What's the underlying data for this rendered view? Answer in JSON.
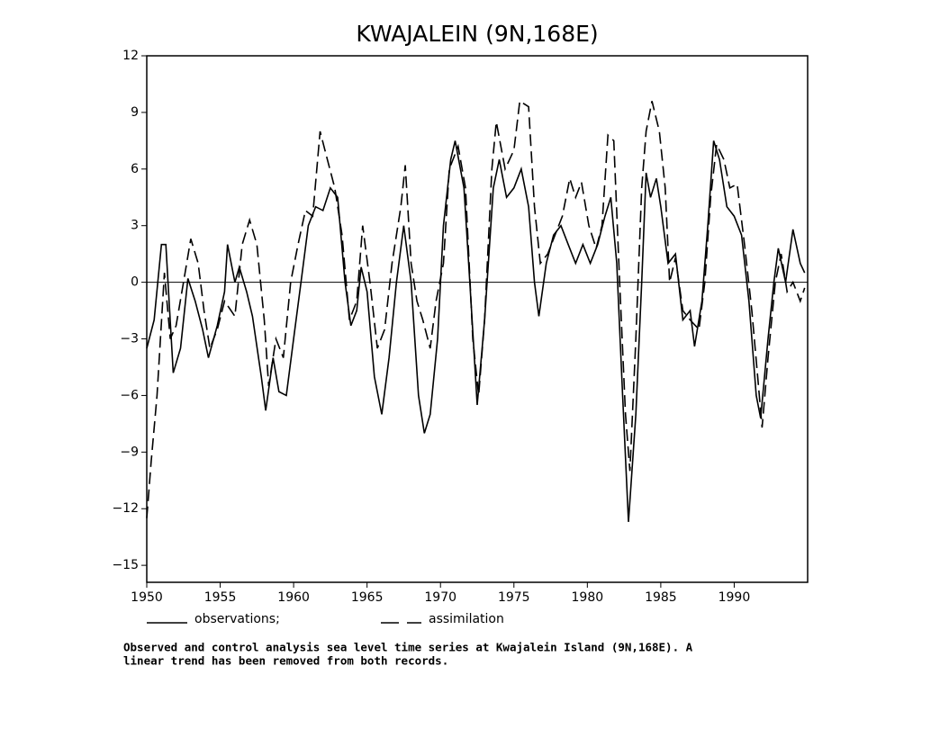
{
  "chart_data": {
    "type": "line",
    "title": "KWAJALEIN (9N,168E)",
    "xlim": [
      1950,
      1995
    ],
    "xticks": [
      1950,
      1955,
      1960,
      1965,
      1970,
      1975,
      1980,
      1985,
      1990
    ],
    "ylim": [
      -15.9,
      12
    ],
    "yticks": [
      {
        "value": -15,
        "label": "−15"
      },
      {
        "value": -12,
        "label": "−12"
      },
      {
        "value": -9,
        "label": "−9"
      },
      {
        "value": -6,
        "label": "−6"
      },
      {
        "value": -3,
        "label": "−3"
      },
      0,
      3,
      6,
      9,
      12
    ],
    "reference_line": 0,
    "series": [
      {
        "name": "observations;",
        "color": "#000000",
        "linestyle": "solid",
        "x": [
          1950.0,
          1950.5,
          1951.0,
          1951.3,
          1951.8,
          1952.3,
          1952.8,
          1953.3,
          1953.8,
          1954.2,
          1954.8,
          1955.3,
          1955.5,
          1956.0,
          1956.3,
          1956.8,
          1957.2,
          1957.8,
          1958.1,
          1958.6,
          1959.0,
          1959.5,
          1960.0,
          1960.5,
          1961.0,
          1961.5,
          1962.0,
          1962.5,
          1963.0,
          1963.5,
          1963.9,
          1964.3,
          1964.6,
          1965.0,
          1965.5,
          1966.0,
          1966.5,
          1967.0,
          1967.5,
          1968.0,
          1968.5,
          1968.9,
          1969.3,
          1969.8,
          1970.2,
          1970.7,
          1971.0,
          1971.6,
          1972.0,
          1972.5,
          1973.0,
          1973.6,
          1974.0,
          1974.5,
          1975.0,
          1975.5,
          1976.0,
          1976.4,
          1976.7,
          1977.2,
          1977.7,
          1978.2,
          1978.7,
          1979.2,
          1979.7,
          1980.2,
          1980.7,
          1981.2,
          1981.6,
          1982.0,
          1982.4,
          1982.8,
          1983.3,
          1983.7,
          1984.0,
          1984.3,
          1984.7,
          1985.0,
          1985.5,
          1986.0,
          1986.5,
          1987.0,
          1987.3,
          1987.8,
          1988.2,
          1988.6,
          1989.0,
          1989.5,
          1990.0,
          1990.5,
          1991.0,
          1991.5,
          1991.8,
          1992.3,
          1992.7,
          1993.0,
          1993.5,
          1994.0,
          1994.5,
          1994.8
        ],
        "values": [
          -3.5,
          -2,
          2,
          2,
          -4.8,
          -3.5,
          0.2,
          -1,
          -2.5,
          -4,
          -2.3,
          -0.5,
          2,
          0,
          0.8,
          -0.5,
          -1.8,
          -5,
          -6.8,
          -4,
          -5.8,
          -6,
          -3,
          0,
          3,
          4,
          3.8,
          5,
          4.5,
          0,
          -2.3,
          -1.5,
          0.8,
          -0.5,
          -5,
          -7,
          -4,
          0,
          3,
          0,
          -6,
          -8,
          -7,
          -3,
          3,
          6.5,
          7.5,
          5,
          0,
          -6.5,
          -2,
          5,
          6.5,
          4.5,
          5,
          6,
          4,
          0,
          -1.8,
          1,
          2.5,
          3,
          2,
          1,
          2,
          1,
          2,
          3.5,
          4.5,
          1,
          -6,
          -12.7,
          -7,
          0,
          5.8,
          4.5,
          5.5,
          4,
          1,
          1.5,
          -2,
          -1.5,
          -3.4,
          -1,
          3,
          7.5,
          6.5,
          4,
          3.5,
          2.5,
          -1,
          -6,
          -7.2,
          -3,
          0,
          1.8,
          0,
          2.8,
          1,
          0.5
        ]
      },
      {
        "name": "assimilation",
        "color": "#000000",
        "linestyle": "dashed",
        "x": [
          1950.0,
          1950.3,
          1950.7,
          1951.2,
          1951.6,
          1952.0,
          1952.5,
          1953.0,
          1953.5,
          1953.9,
          1954.3,
          1954.8,
          1955.3,
          1956.0,
          1956.5,
          1957.0,
          1957.5,
          1958.0,
          1958.3,
          1958.8,
          1959.3,
          1959.8,
          1960.3,
          1960.8,
          1961.3,
          1961.8,
          1962.3,
          1962.8,
          1963.3,
          1963.8,
          1964.3,
          1964.7,
          1965.2,
          1965.7,
          1966.2,
          1966.7,
          1967.3,
          1967.6,
          1968.0,
          1968.4,
          1968.8,
          1969.3,
          1969.7,
          1970.2,
          1970.6,
          1971.2,
          1971.7,
          1972.2,
          1972.6,
          1973.0,
          1973.5,
          1973.8,
          1974.4,
          1975.0,
          1975.4,
          1976.0,
          1976.4,
          1976.8,
          1977.3,
          1977.8,
          1978.3,
          1978.8,
          1979.2,
          1979.6,
          1980.1,
          1980.6,
          1981.0,
          1981.4,
          1981.8,
          1982.2,
          1982.6,
          1982.9,
          1983.3,
          1983.7,
          1984.0,
          1984.4,
          1984.9,
          1985.3,
          1985.6,
          1986.0,
          1986.5,
          1987.0,
          1987.6,
          1988.0,
          1988.4,
          1988.8,
          1989.3,
          1989.7,
          1990.2,
          1990.7,
          1991.2,
          1991.6,
          1991.9,
          1992.3,
          1992.8,
          1993.2,
          1993.6,
          1994.0,
          1994.5,
          1994.8
        ],
        "values": [
          -12.5,
          -9.5,
          -6,
          0.5,
          -3,
          -2.3,
          0,
          2.3,
          1,
          -1.5,
          -3.5,
          -2.5,
          -1,
          -1.8,
          2,
          3.3,
          2,
          -2,
          -5.5,
          -3,
          -4,
          0,
          2,
          3.8,
          3.5,
          8,
          6.5,
          5,
          2.5,
          -2,
          -1,
          3,
          0,
          -3.5,
          -2.5,
          1,
          4,
          6.2,
          1,
          -1,
          -2,
          -3.5,
          -1,
          1,
          6,
          7.2,
          5,
          -3,
          -6,
          -2,
          6,
          8.5,
          6,
          7,
          9.6,
          9.3,
          4,
          1,
          1.5,
          2.5,
          3.5,
          5.5,
          4.5,
          5.3,
          3,
          1.8,
          3,
          7.8,
          7.5,
          0,
          -7,
          -10,
          -3,
          5,
          8,
          9.6,
          8,
          5,
          0,
          1.3,
          -1.5,
          -2,
          -2.5,
          0,
          4.5,
          7.3,
          6.5,
          5,
          5.2,
          2,
          -1.5,
          -5,
          -7.7,
          -4,
          0,
          1.5,
          -0.5,
          0,
          -1,
          -0.3
        ]
      }
    ],
    "caption": [
      "Observed and control analysis sea level time series at Kwajalein Island (9N,168E). A",
      "linear trend has been removed from both records."
    ]
  }
}
